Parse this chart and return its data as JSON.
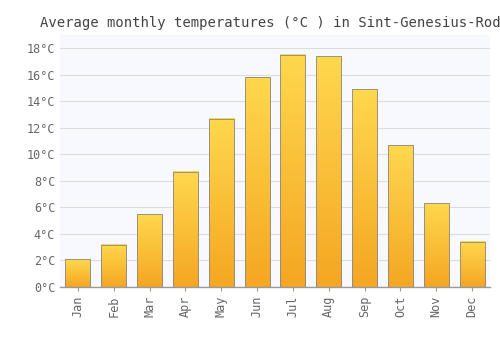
{
  "title": "Average monthly temperatures (°C ) in Sint-Genesius-Rode",
  "months": [
    "Jan",
    "Feb",
    "Mar",
    "Apr",
    "May",
    "Jun",
    "Jul",
    "Aug",
    "Sep",
    "Oct",
    "Nov",
    "Dec"
  ],
  "values": [
    2.1,
    3.2,
    5.5,
    8.7,
    12.7,
    15.8,
    17.5,
    17.4,
    14.9,
    10.7,
    6.3,
    3.4
  ],
  "bar_color_bottom": "#F5A623",
  "bar_color_top": "#FFD84D",
  "bar_edge_color": "#888888",
  "background_color": "#FFFFFF",
  "plot_bg_color": "#F8F8FF",
  "grid_color": "#DDDDDD",
  "ylim": [
    0,
    19
  ],
  "ytick_values": [
    0,
    2,
    4,
    6,
    8,
    10,
    12,
    14,
    16,
    18
  ],
  "title_fontsize": 10,
  "tick_fontsize": 8.5,
  "title_color": "#444444",
  "tick_color": "#666666",
  "bar_width": 0.7
}
